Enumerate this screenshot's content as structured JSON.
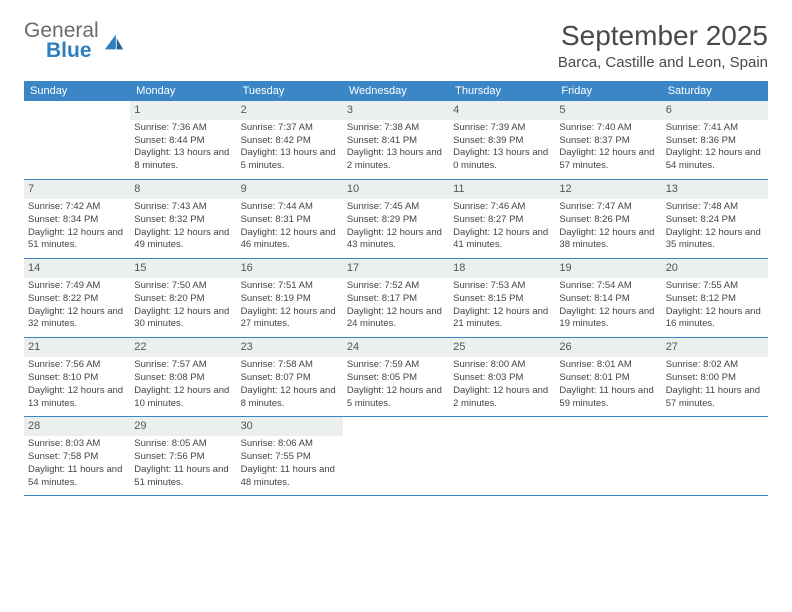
{
  "logo": {
    "word1": "General",
    "word2": "Blue"
  },
  "title": "September 2025",
  "location": "Barca, Castille and Leon, Spain",
  "colors": {
    "header_bg": "#3b86c6",
    "header_text": "#ffffff",
    "daynum_bg": "#eceff0",
    "rule": "#3b86c6",
    "logo_gray": "#6b6b6b",
    "logo_blue": "#2f7fbf",
    "body_text": "#4a4a4a"
  },
  "weekdays": [
    "Sunday",
    "Monday",
    "Tuesday",
    "Wednesday",
    "Thursday",
    "Friday",
    "Saturday"
  ],
  "weeks": [
    [
      {
        "n": "",
        "sr": "",
        "ss": "",
        "dl": ""
      },
      {
        "n": "1",
        "sr": "7:36 AM",
        "ss": "8:44 PM",
        "dl": "13 hours and 8 minutes."
      },
      {
        "n": "2",
        "sr": "7:37 AM",
        "ss": "8:42 PM",
        "dl": "13 hours and 5 minutes."
      },
      {
        "n": "3",
        "sr": "7:38 AM",
        "ss": "8:41 PM",
        "dl": "13 hours and 2 minutes."
      },
      {
        "n": "4",
        "sr": "7:39 AM",
        "ss": "8:39 PM",
        "dl": "13 hours and 0 minutes."
      },
      {
        "n": "5",
        "sr": "7:40 AM",
        "ss": "8:37 PM",
        "dl": "12 hours and 57 minutes."
      },
      {
        "n": "6",
        "sr": "7:41 AM",
        "ss": "8:36 PM",
        "dl": "12 hours and 54 minutes."
      }
    ],
    [
      {
        "n": "7",
        "sr": "7:42 AM",
        "ss": "8:34 PM",
        "dl": "12 hours and 51 minutes."
      },
      {
        "n": "8",
        "sr": "7:43 AM",
        "ss": "8:32 PM",
        "dl": "12 hours and 49 minutes."
      },
      {
        "n": "9",
        "sr": "7:44 AM",
        "ss": "8:31 PM",
        "dl": "12 hours and 46 minutes."
      },
      {
        "n": "10",
        "sr": "7:45 AM",
        "ss": "8:29 PM",
        "dl": "12 hours and 43 minutes."
      },
      {
        "n": "11",
        "sr": "7:46 AM",
        "ss": "8:27 PM",
        "dl": "12 hours and 41 minutes."
      },
      {
        "n": "12",
        "sr": "7:47 AM",
        "ss": "8:26 PM",
        "dl": "12 hours and 38 minutes."
      },
      {
        "n": "13",
        "sr": "7:48 AM",
        "ss": "8:24 PM",
        "dl": "12 hours and 35 minutes."
      }
    ],
    [
      {
        "n": "14",
        "sr": "7:49 AM",
        "ss": "8:22 PM",
        "dl": "12 hours and 32 minutes."
      },
      {
        "n": "15",
        "sr": "7:50 AM",
        "ss": "8:20 PM",
        "dl": "12 hours and 30 minutes."
      },
      {
        "n": "16",
        "sr": "7:51 AM",
        "ss": "8:19 PM",
        "dl": "12 hours and 27 minutes."
      },
      {
        "n": "17",
        "sr": "7:52 AM",
        "ss": "8:17 PM",
        "dl": "12 hours and 24 minutes."
      },
      {
        "n": "18",
        "sr": "7:53 AM",
        "ss": "8:15 PM",
        "dl": "12 hours and 21 minutes."
      },
      {
        "n": "19",
        "sr": "7:54 AM",
        "ss": "8:14 PM",
        "dl": "12 hours and 19 minutes."
      },
      {
        "n": "20",
        "sr": "7:55 AM",
        "ss": "8:12 PM",
        "dl": "12 hours and 16 minutes."
      }
    ],
    [
      {
        "n": "21",
        "sr": "7:56 AM",
        "ss": "8:10 PM",
        "dl": "12 hours and 13 minutes."
      },
      {
        "n": "22",
        "sr": "7:57 AM",
        "ss": "8:08 PM",
        "dl": "12 hours and 10 minutes."
      },
      {
        "n": "23",
        "sr": "7:58 AM",
        "ss": "8:07 PM",
        "dl": "12 hours and 8 minutes."
      },
      {
        "n": "24",
        "sr": "7:59 AM",
        "ss": "8:05 PM",
        "dl": "12 hours and 5 minutes."
      },
      {
        "n": "25",
        "sr": "8:00 AM",
        "ss": "8:03 PM",
        "dl": "12 hours and 2 minutes."
      },
      {
        "n": "26",
        "sr": "8:01 AM",
        "ss": "8:01 PM",
        "dl": "11 hours and 59 minutes."
      },
      {
        "n": "27",
        "sr": "8:02 AM",
        "ss": "8:00 PM",
        "dl": "11 hours and 57 minutes."
      }
    ],
    [
      {
        "n": "28",
        "sr": "8:03 AM",
        "ss": "7:58 PM",
        "dl": "11 hours and 54 minutes."
      },
      {
        "n": "29",
        "sr": "8:05 AM",
        "ss": "7:56 PM",
        "dl": "11 hours and 51 minutes."
      },
      {
        "n": "30",
        "sr": "8:06 AM",
        "ss": "7:55 PM",
        "dl": "11 hours and 48 minutes."
      },
      {
        "n": "",
        "sr": "",
        "ss": "",
        "dl": ""
      },
      {
        "n": "",
        "sr": "",
        "ss": "",
        "dl": ""
      },
      {
        "n": "",
        "sr": "",
        "ss": "",
        "dl": ""
      },
      {
        "n": "",
        "sr": "",
        "ss": "",
        "dl": ""
      }
    ]
  ],
  "labels": {
    "sunrise": "Sunrise:",
    "sunset": "Sunset:",
    "daylight": "Daylight:"
  }
}
